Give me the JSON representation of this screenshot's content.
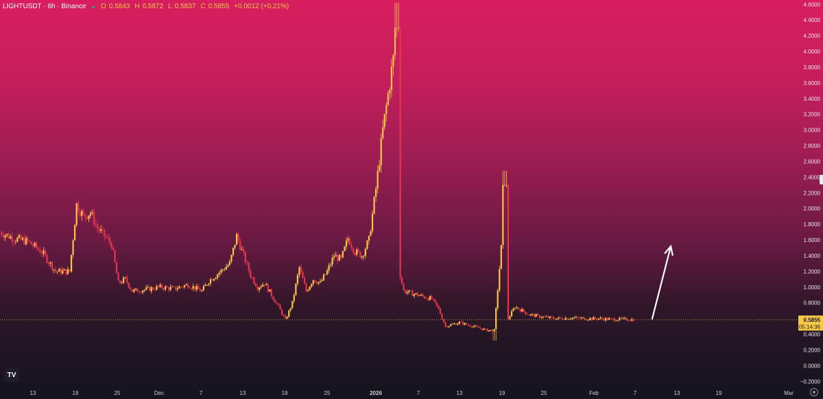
{
  "header": {
    "symbol": "LIGHTUSDT · 6h · Binance",
    "open_label": "O",
    "open": "0.5843",
    "high_label": "H",
    "high": "0.5872",
    "low_label": "L",
    "low": "0.5837",
    "close_label": "C",
    "close": "0.5855",
    "change": "+0.0012 (+0.21%)"
  },
  "price_axis": {
    "ticks": [
      "4.6000",
      "4.4000",
      "4.2000",
      "4.0000",
      "3.8000",
      "3.6000",
      "3.4000",
      "3.2000",
      "3.0000",
      "2.8000",
      "2.6000",
      "2.4000",
      "2.2000",
      "2.0000",
      "1.8000",
      "1.6000",
      "1.4000",
      "1.2000",
      "1.0000",
      "0.8000",
      "0.6000",
      "0.4000",
      "0.2000",
      "0.0000",
      "−0.2000"
    ]
  },
  "current_price": {
    "price": "0.5855",
    "countdown": "05:14:36"
  },
  "time_axis": {
    "labels": [
      "13",
      "19",
      "25",
      "Dec",
      "7",
      "13",
      "19",
      "25",
      "2026",
      "7",
      "13",
      "19",
      "25",
      "Feb",
      "7",
      "13",
      "19",
      "Mar"
    ]
  },
  "colors": {
    "up": "#f7c948",
    "down": "#e8354c",
    "price_line": "#f7c948",
    "arrow": "#ffffff"
  },
  "chart_data": {
    "type": "candlestick",
    "symbol": "LIGHTUSDT",
    "interval": "6h",
    "exchange": "Binance",
    "ylim": [
      -0.25,
      4.62
    ],
    "y_ticks": [
      4.6,
      4.4,
      4.2,
      4.0,
      3.8,
      3.6,
      3.4,
      3.2,
      3.0,
      2.8,
      2.6,
      2.4,
      2.2,
      2.0,
      1.8,
      1.6,
      1.4,
      1.2,
      1.0,
      0.8,
      0.6,
      0.4,
      0.2,
      0.0,
      -0.2
    ],
    "x_ticks": [
      "13",
      "19",
      "25",
      "Dec",
      "7",
      "13",
      "19",
      "25",
      "2026",
      "7",
      "13",
      "19",
      "25",
      "Feb",
      "7",
      "13",
      "19",
      "Mar"
    ],
    "last_price": 0.5855,
    "last_ohlc": {
      "open": 0.5843,
      "high": 0.5872,
      "low": 0.5837,
      "close": 0.5855
    },
    "price_path": [
      {
        "d": 0,
        "c": 1.7
      },
      {
        "d": 2,
        "c": 1.62
      },
      {
        "d": 4,
        "c": 1.58
      },
      {
        "d": 6,
        "c": 1.45
      },
      {
        "d": 8,
        "c": 1.2
      },
      {
        "d": 10,
        "c": 1.2
      },
      {
        "d": 11,
        "c": 2.05
      },
      {
        "d": 12,
        "c": 1.9
      },
      {
        "d": 13,
        "c": 1.95
      },
      {
        "d": 14,
        "c": 1.75
      },
      {
        "d": 15,
        "c": 1.65
      },
      {
        "d": 16,
        "c": 1.55
      },
      {
        "d": 17,
        "c": 1.05
      },
      {
        "d": 18,
        "c": 1.1
      },
      {
        "d": 19,
        "c": 0.95
      },
      {
        "d": 21,
        "c": 0.97
      },
      {
        "d": 23,
        "c": 1.0
      },
      {
        "d": 25,
        "c": 0.98
      },
      {
        "d": 27,
        "c": 1.03
      },
      {
        "d": 29,
        "c": 0.95
      },
      {
        "d": 30,
        "c": 1.08
      },
      {
        "d": 31,
        "c": 1.15
      },
      {
        "d": 33,
        "c": 1.3
      },
      {
        "d": 34,
        "c": 1.65
      },
      {
        "d": 35,
        "c": 1.4
      },
      {
        "d": 36,
        "c": 1.15
      },
      {
        "d": 37,
        "c": 1.0
      },
      {
        "d": 38,
        "c": 1.05
      },
      {
        "d": 39,
        "c": 0.9
      },
      {
        "d": 40,
        "c": 0.75
      },
      {
        "d": 41,
        "c": 0.58
      },
      {
        "d": 42,
        "c": 0.8
      },
      {
        "d": 43,
        "c": 1.25
      },
      {
        "d": 44,
        "c": 0.95
      },
      {
        "d": 45,
        "c": 1.1
      },
      {
        "d": 46,
        "c": 1.05
      },
      {
        "d": 47,
        "c": 1.2
      },
      {
        "d": 48,
        "c": 1.4
      },
      {
        "d": 49,
        "c": 1.35
      },
      {
        "d": 50,
        "c": 1.62
      },
      {
        "d": 51,
        "c": 1.45
      },
      {
        "d": 52,
        "c": 1.4
      },
      {
        "d": 53,
        "c": 1.6
      },
      {
        "d": 54,
        "c": 2.25
      },
      {
        "d": 55,
        "c": 3.0
      },
      {
        "d": 56,
        "c": 3.6
      },
      {
        "d": 57,
        "c": 4.2
      },
      {
        "d": 57.5,
        "c": 1.15
      },
      {
        "d": 58,
        "c": 0.95
      },
      {
        "d": 60,
        "c": 0.9
      },
      {
        "d": 62,
        "c": 0.85
      },
      {
        "d": 63,
        "c": 0.72
      },
      {
        "d": 64,
        "c": 0.5
      },
      {
        "d": 66,
        "c": 0.55
      },
      {
        "d": 68,
        "c": 0.5
      },
      {
        "d": 70,
        "c": 0.45
      },
      {
        "d": 71,
        "c": 0.45
      },
      {
        "d": 72,
        "c": 1.5
      },
      {
        "d": 72.5,
        "c": 2.3
      },
      {
        "d": 73,
        "c": 0.6
      },
      {
        "d": 74,
        "c": 0.75
      },
      {
        "d": 76,
        "c": 0.65
      },
      {
        "d": 78,
        "c": 0.62
      },
      {
        "d": 80,
        "c": 0.6
      },
      {
        "d": 82,
        "c": 0.61
      },
      {
        "d": 84,
        "c": 0.6
      },
      {
        "d": 86,
        "c": 0.6
      },
      {
        "d": 88,
        "c": 0.59
      },
      {
        "d": 90,
        "c": 0.59
      },
      {
        "d": 91,
        "c": 0.5855
      }
    ],
    "annotation": {
      "type": "arrow",
      "from": {
        "d": 91.5,
        "price": 0.59
      },
      "to": {
        "d": 94,
        "price": 1.52
      }
    }
  }
}
